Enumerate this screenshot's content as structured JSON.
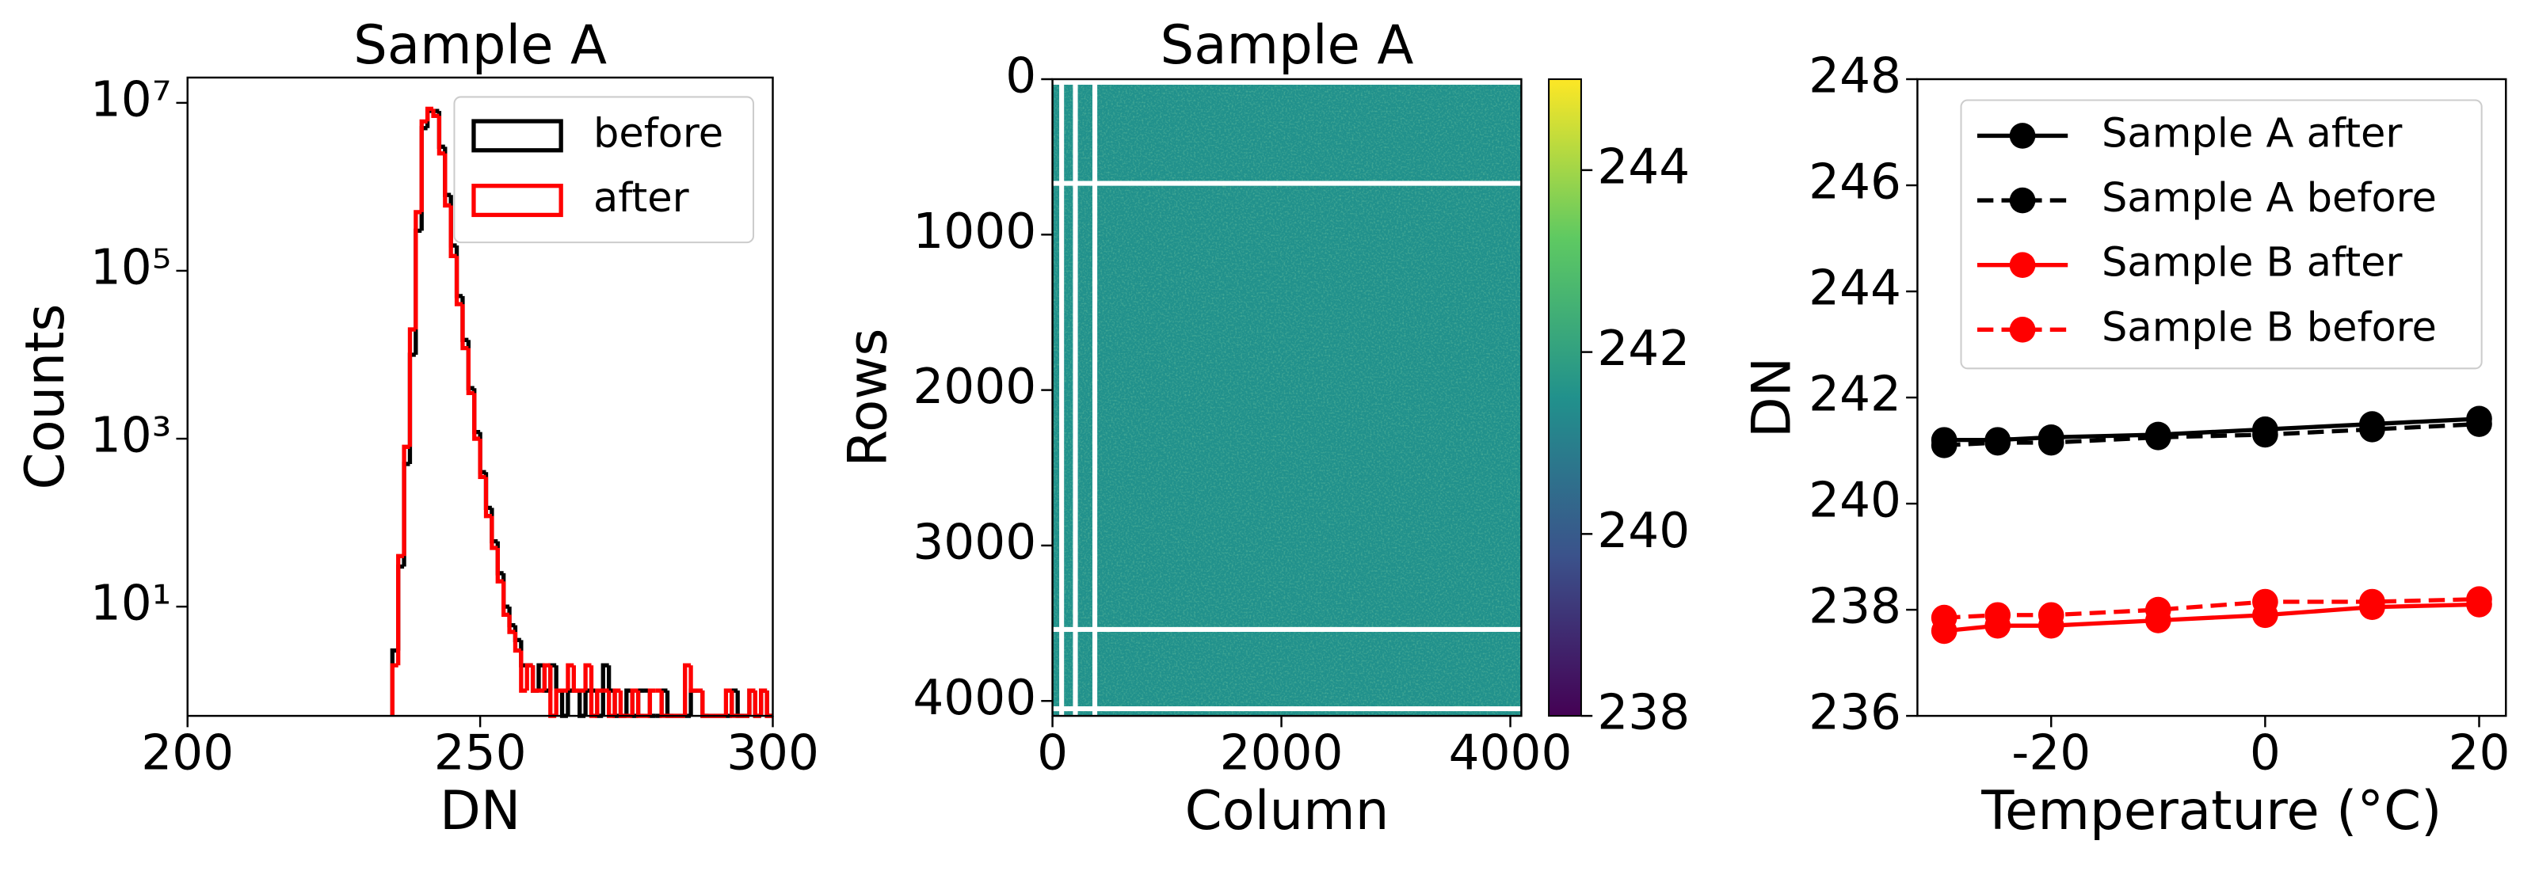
{
  "chart_data": [
    {
      "type": "histogram",
      "title": "Sample A",
      "xlabel": "DN",
      "ylabel": "Counts",
      "xlim": [
        200,
        300
      ],
      "xticks": [
        200,
        250,
        300
      ],
      "ylim": [
        0.5,
        20000000
      ],
      "log_y": true,
      "yticks": [
        {
          "value": 10,
          "label": "10¹"
        },
        {
          "value": 1000,
          "label": "10³"
        },
        {
          "value": 100000,
          "label": "10⁵"
        },
        {
          "value": 10000000,
          "label": "10⁷"
        }
      ],
      "legend": "upper right",
      "bins": [
        235,
        236,
        237,
        238,
        239,
        240,
        241,
        242,
        243,
        244,
        245,
        246,
        247,
        248,
        249,
        250,
        251,
        252,
        253,
        254,
        255,
        256,
        257,
        258,
        259,
        260,
        261,
        262,
        263,
        264,
        265,
        266,
        267,
        268,
        269,
        270,
        271,
        272,
        273,
        274,
        275,
        276,
        277,
        278,
        279,
        280,
        281,
        282,
        283,
        284,
        285,
        286,
        287,
        288,
        289,
        290,
        291,
        292,
        293,
        294,
        295,
        296,
        297,
        298,
        299,
        300
      ],
      "series": [
        {
          "name": "before",
          "color": "#000000",
          "values": [
            3,
            30,
            500,
            10000,
            300000,
            5000000,
            8000000,
            8000000,
            3000000,
            800000,
            200000,
            50000,
            15000,
            4000,
            1200,
            400,
            150,
            60,
            25,
            10,
            6,
            4,
            2,
            2,
            1,
            2,
            1,
            2,
            1,
            0,
            1,
            1,
            0,
            1,
            1,
            0,
            2,
            1,
            0,
            0,
            1,
            0,
            1,
            1,
            0,
            0,
            1,
            0,
            0,
            0,
            0,
            1,
            1,
            0,
            0,
            0,
            0,
            0,
            1,
            0,
            0,
            1,
            0,
            1,
            0
          ]
        },
        {
          "name": "after",
          "color": "#ff0000",
          "values": [
            2,
            40,
            800,
            20000,
            500000,
            6000000,
            8500000,
            7000000,
            2500000,
            600000,
            150000,
            40000,
            12000,
            3500,
            1000,
            350,
            120,
            50,
            20,
            8,
            5,
            3,
            1,
            2,
            1,
            1,
            2,
            0,
            1,
            1,
            2,
            1,
            1,
            2,
            0,
            1,
            1,
            0,
            1,
            0,
            0,
            1,
            0,
            0,
            1,
            1,
            0,
            0,
            0,
            0,
            2,
            1,
            1,
            0,
            0,
            0,
            0,
            1,
            0,
            0,
            0,
            1,
            0,
            1,
            0
          ]
        }
      ]
    },
    {
      "type": "image",
      "title": "Sample A",
      "xlabel": "Column",
      "ylabel": "Rows",
      "xlim": [
        0,
        4096
      ],
      "xticks": [
        0,
        2000,
        4000
      ],
      "ylim": [
        4096,
        0
      ],
      "yticks": [
        0,
        1000,
        2000,
        3000,
        4000
      ],
      "colormap": "viridis",
      "fill_value": 241.5,
      "mask_rows": [
        20,
        670,
        3540,
        4050
      ],
      "mask_columns": [
        80,
        200,
        370
      ],
      "clim": [
        238,
        245
      ],
      "cticks": [
        238,
        240,
        242,
        244
      ]
    },
    {
      "type": "line",
      "xlabel": "Temperature (°C)",
      "ylabel": "DN",
      "xlim": [
        -32.5,
        22.5
      ],
      "xticks": [
        -20,
        0,
        20
      ],
      "ylim": [
        236,
        248
      ],
      "yticks": [
        236,
        238,
        240,
        242,
        244,
        246,
        248
      ],
      "legend": "upper left",
      "x": [
        -30,
        -25,
        -20,
        -10,
        0,
        10,
        20
      ],
      "series": [
        {
          "name": "Sample A after",
          "color": "#000000",
          "linestyle": "solid",
          "values": [
            241.2,
            241.2,
            241.25,
            241.3,
            241.4,
            241.5,
            241.6
          ]
        },
        {
          "name": "Sample A before",
          "color": "#000000",
          "linestyle": "dashed",
          "values": [
            241.1,
            241.15,
            241.15,
            241.25,
            241.3,
            241.4,
            241.5
          ]
        },
        {
          "name": "Sample B after",
          "color": "#ff0000",
          "linestyle": "solid",
          "values": [
            237.6,
            237.7,
            237.7,
            237.8,
            237.9,
            238.05,
            238.1
          ]
        },
        {
          "name": "Sample B before",
          "color": "#ff0000",
          "linestyle": "dashed",
          "values": [
            237.85,
            237.9,
            237.9,
            238.0,
            238.15,
            238.15,
            238.2
          ]
        }
      ]
    }
  ]
}
